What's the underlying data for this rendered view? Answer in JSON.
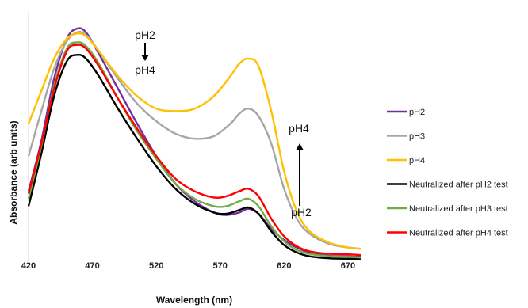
{
  "chart_data": {
    "type": "line",
    "title": "",
    "xlabel": "Wavelength (nm)",
    "ylabel": "Absorbance (arb units)",
    "xlim": [
      420,
      680
    ],
    "ylim": [
      0,
      1
    ],
    "x_ticks": [
      "420",
      "470",
      "520",
      "570",
      "620",
      "670"
    ],
    "grid": false,
    "legend_position": "right",
    "series": [
      {
        "name": "pH2",
        "color": "#7030A0",
        "points": [
          [
            420,
            0.28
          ],
          [
            430,
            0.48
          ],
          [
            440,
            0.73
          ],
          [
            450,
            0.89
          ],
          [
            458,
            0.93
          ],
          [
            465,
            0.915
          ],
          [
            475,
            0.83
          ],
          [
            490,
            0.69
          ],
          [
            505,
            0.55
          ],
          [
            520,
            0.42
          ],
          [
            535,
            0.31
          ],
          [
            550,
            0.24
          ],
          [
            565,
            0.195
          ],
          [
            575,
            0.185
          ],
          [
            585,
            0.195
          ],
          [
            592,
            0.21
          ],
          [
            600,
            0.19
          ],
          [
            610,
            0.13
          ],
          [
            620,
            0.085
          ],
          [
            630,
            0.055
          ],
          [
            640,
            0.035
          ],
          [
            655,
            0.022
          ],
          [
            670,
            0.02
          ],
          [
            680,
            0.018
          ]
        ]
      },
      {
        "name": "pH3",
        "color": "#A6A6A6",
        "points": [
          [
            420,
            0.42
          ],
          [
            430,
            0.6
          ],
          [
            440,
            0.77
          ],
          [
            450,
            0.88
          ],
          [
            458,
            0.915
          ],
          [
            465,
            0.905
          ],
          [
            475,
            0.84
          ],
          [
            490,
            0.73
          ],
          [
            505,
            0.63
          ],
          [
            520,
            0.56
          ],
          [
            535,
            0.51
          ],
          [
            550,
            0.49
          ],
          [
            565,
            0.5
          ],
          [
            578,
            0.55
          ],
          [
            585,
            0.59
          ],
          [
            592,
            0.61
          ],
          [
            600,
            0.58
          ],
          [
            610,
            0.47
          ],
          [
            620,
            0.29
          ],
          [
            630,
            0.17
          ],
          [
            640,
            0.11
          ],
          [
            655,
            0.07
          ],
          [
            670,
            0.055
          ],
          [
            680,
            0.05
          ]
        ]
      },
      {
        "name": "pH4",
        "color": "#FFC000",
        "points": [
          [
            420,
            0.55
          ],
          [
            430,
            0.68
          ],
          [
            440,
            0.81
          ],
          [
            450,
            0.89
          ],
          [
            458,
            0.91
          ],
          [
            465,
            0.9
          ],
          [
            475,
            0.84
          ],
          [
            490,
            0.74
          ],
          [
            505,
            0.66
          ],
          [
            520,
            0.61
          ],
          [
            535,
            0.6
          ],
          [
            550,
            0.61
          ],
          [
            565,
            0.66
          ],
          [
            578,
            0.74
          ],
          [
            585,
            0.79
          ],
          [
            592,
            0.81
          ],
          [
            600,
            0.78
          ],
          [
            610,
            0.6
          ],
          [
            620,
            0.36
          ],
          [
            630,
            0.2
          ],
          [
            640,
            0.12
          ],
          [
            655,
            0.075
          ],
          [
            670,
            0.055
          ],
          [
            680,
            0.05
          ]
        ]
      },
      {
        "name": "Neutralized after pH2 test",
        "color": "#000000",
        "points": [
          [
            420,
            0.22
          ],
          [
            430,
            0.43
          ],
          [
            440,
            0.66
          ],
          [
            450,
            0.8
          ],
          [
            458,
            0.825
          ],
          [
            465,
            0.81
          ],
          [
            475,
            0.74
          ],
          [
            490,
            0.61
          ],
          [
            505,
            0.49
          ],
          [
            520,
            0.38
          ],
          [
            535,
            0.29
          ],
          [
            550,
            0.23
          ],
          [
            565,
            0.195
          ],
          [
            575,
            0.19
          ],
          [
            585,
            0.205
          ],
          [
            592,
            0.215
          ],
          [
            600,
            0.19
          ],
          [
            610,
            0.12
          ],
          [
            620,
            0.065
          ],
          [
            630,
            0.035
          ],
          [
            640,
            0.02
          ],
          [
            655,
            0.012
          ],
          [
            670,
            0.01
          ],
          [
            680,
            0.01
          ]
        ]
      },
      {
        "name": "Neutralized after pH3 test",
        "color": "#70AD47",
        "points": [
          [
            420,
            0.25
          ],
          [
            430,
            0.46
          ],
          [
            440,
            0.7
          ],
          [
            450,
            0.85
          ],
          [
            458,
            0.875
          ],
          [
            465,
            0.86
          ],
          [
            475,
            0.79
          ],
          [
            490,
            0.65
          ],
          [
            505,
            0.52
          ],
          [
            520,
            0.41
          ],
          [
            535,
            0.31
          ],
          [
            550,
            0.25
          ],
          [
            565,
            0.22
          ],
          [
            575,
            0.22
          ],
          [
            585,
            0.24
          ],
          [
            592,
            0.25
          ],
          [
            600,
            0.22
          ],
          [
            610,
            0.14
          ],
          [
            620,
            0.08
          ],
          [
            630,
            0.045
          ],
          [
            640,
            0.03
          ],
          [
            655,
            0.02
          ],
          [
            670,
            0.018
          ],
          [
            680,
            0.015
          ]
        ]
      },
      {
        "name": "Neutralized after pH4 test",
        "color": "#FF0000",
        "points": [
          [
            420,
            0.27
          ],
          [
            430,
            0.47
          ],
          [
            440,
            0.69
          ],
          [
            450,
            0.84
          ],
          [
            458,
            0.865
          ],
          [
            465,
            0.85
          ],
          [
            475,
            0.78
          ],
          [
            490,
            0.65
          ],
          [
            505,
            0.53
          ],
          [
            520,
            0.42
          ],
          [
            535,
            0.33
          ],
          [
            550,
            0.28
          ],
          [
            565,
            0.255
          ],
          [
            575,
            0.26
          ],
          [
            585,
            0.28
          ],
          [
            592,
            0.29
          ],
          [
            600,
            0.26
          ],
          [
            610,
            0.17
          ],
          [
            620,
            0.1
          ],
          [
            630,
            0.06
          ],
          [
            640,
            0.04
          ],
          [
            655,
            0.03
          ],
          [
            670,
            0.028
          ],
          [
            680,
            0.025
          ]
        ]
      }
    ],
    "annotations": {
      "left_top": "pH2",
      "left_bottom": "pH4",
      "right_top": "pH4",
      "right_bottom": "pH2"
    }
  }
}
